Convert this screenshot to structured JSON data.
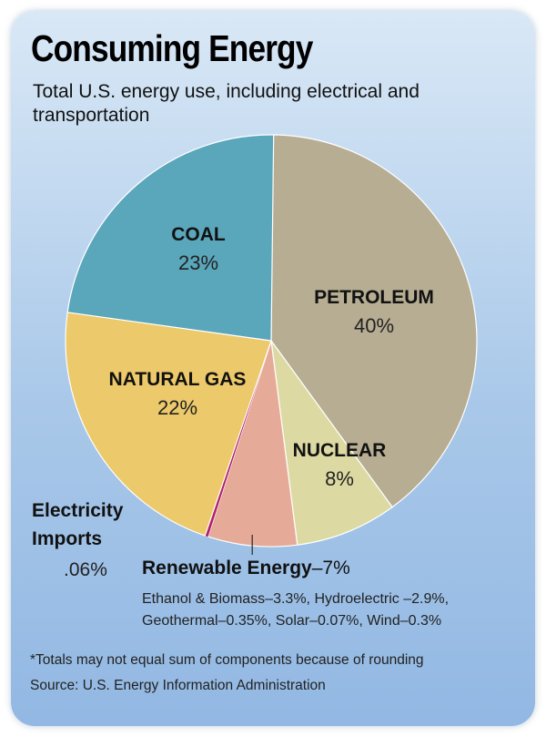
{
  "title": "Consuming Energy",
  "subtitle": "Total U.S. energy use, including electrical and transportation",
  "chart_data": {
    "type": "pie",
    "title": "Consuming Energy",
    "subtitle": "Total U.S. energy use, including electrical and transportation",
    "slices": [
      {
        "name": "PETROLEUM",
        "value": 40,
        "value_label": "40%",
        "color": "#b7ad93"
      },
      {
        "name": "NUCLEAR",
        "value": 8,
        "value_label": "8%",
        "color": "#dcdaa2"
      },
      {
        "name": "Renewable Energy",
        "value": 7,
        "value_label": "7%",
        "color": "#e6aa98"
      },
      {
        "name": "Electricity Imports",
        "value": 0.06,
        "value_label": ".06%",
        "color": "#b0226c"
      },
      {
        "name": "NATURAL GAS",
        "value": 22,
        "value_label": "22%",
        "color": "#ecc96a"
      },
      {
        "name": "COAL",
        "value": 23,
        "value_label": "23%",
        "color": "#5aa6bb"
      }
    ],
    "renewable_breakdown": [
      {
        "name": "Ethanol & Biomass",
        "value": 3.3
      },
      {
        "name": "Hydroelectric",
        "value": 2.9
      },
      {
        "name": "Geothermal",
        "value": 0.35
      },
      {
        "name": "Solar",
        "value": 0.07
      },
      {
        "name": "Wind",
        "value": 0.3
      }
    ]
  },
  "annotations": {
    "electricity_imports_name_line1": "Electricity",
    "electricity_imports_name_line2": "Imports",
    "electricity_imports_value": ".06%",
    "renewable_name": "Renewable Energy",
    "renewable_value": "–7%",
    "renewable_detail_line1": "Ethanol & Biomass–3.3%, Hydroelectric –2.9%,",
    "renewable_detail_line2": "Geothermal–0.35%, Solar–0.07%, Wind–0.3%"
  },
  "footnote": "*Totals may not equal sum of components because of rounding",
  "source": "Source: U.S. Energy Information Administration"
}
